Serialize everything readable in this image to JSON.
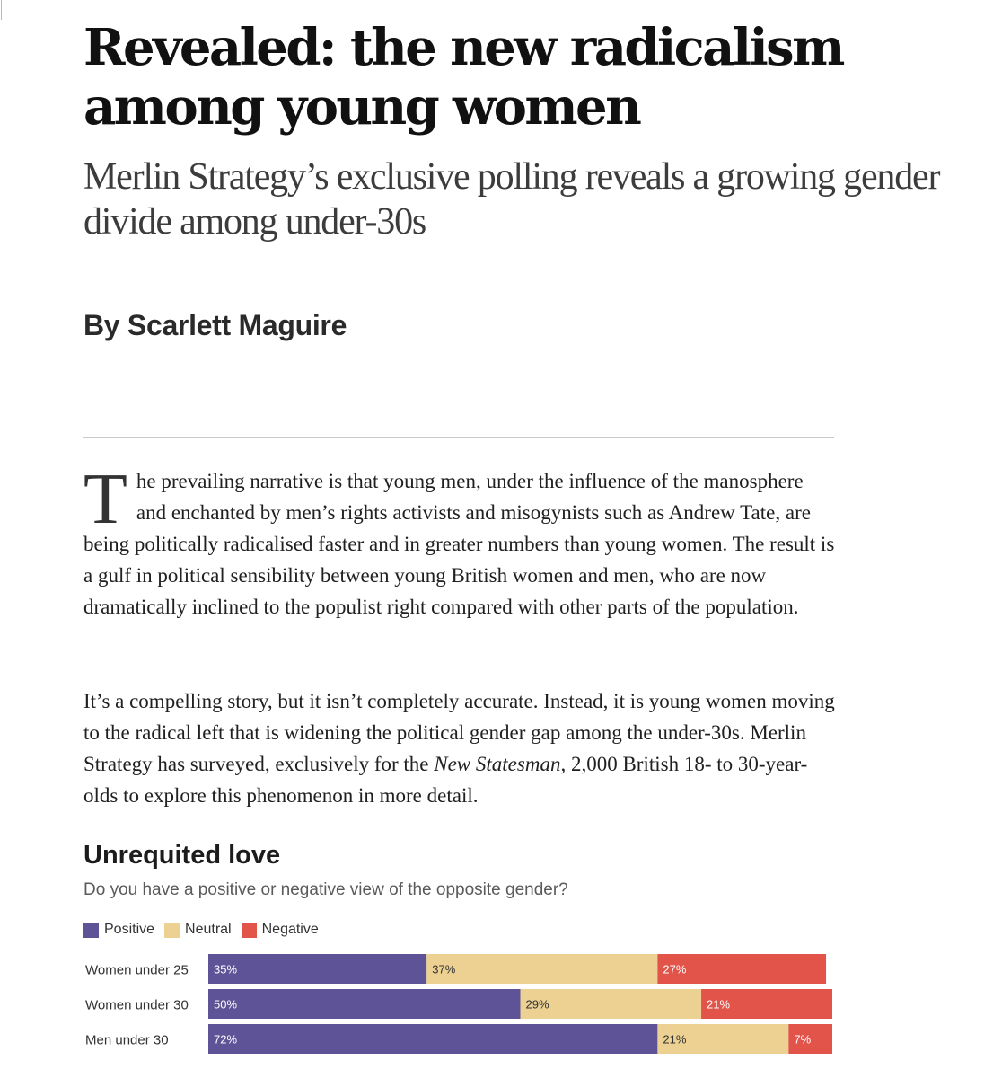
{
  "article": {
    "headline": "Revealed: the new radicalism among young women",
    "standfirst": "Merlin Strategy’s exclusive polling reveals a growing gender divide among under-30s",
    "byline": "By Scarlett Maguire",
    "paragraph1": {
      "dropcap": "T",
      "text": "he prevailing narrative is that young men, under the influence of the manosphere and enchanted by men’s rights activists and misogynists such as Andrew Tate, are being politically radicalised faster and in greater numbers than young women. The result is a gulf in political sensibility between young British women and men, who are now dramatically inclined to the populist right compared with other parts of the population."
    },
    "paragraph2": {
      "before": "It’s a compelling story, but it isn’t completely accurate. Instead, it is young women moving to the radical left that is widening the political gender gap among the under-30s. Merlin Strategy has surveyed, exclusively for the ",
      "italic": "New Statesman",
      "after": ", 2,000 British 18- to 30-year-olds to explore this phenomenon in more detail."
    }
  },
  "chart_data": {
    "type": "bar",
    "orientation": "horizontal",
    "stacked": true,
    "title": "Unrequited love",
    "subtitle": "Do you have a positive or negative view of the opposite gender?",
    "categories": [
      "Women under 25",
      "Women under 30",
      "Men under 30"
    ],
    "series": [
      {
        "name": "Positive",
        "color": "#5e5397",
        "values": [
          35,
          50,
          72
        ],
        "labels": [
          "35%",
          "50%",
          "72%"
        ]
      },
      {
        "name": "Neutral",
        "color": "#ecd192",
        "values": [
          37,
          29,
          21
        ],
        "labels": [
          "37%",
          "29%",
          "21%"
        ]
      },
      {
        "name": "Negative",
        "color": "#e2534a",
        "values": [
          27,
          21,
          7
        ],
        "labels": [
          "27%",
          "21%",
          "7%"
        ]
      }
    ],
    "legend_position": "top-left",
    "grid": false
  }
}
